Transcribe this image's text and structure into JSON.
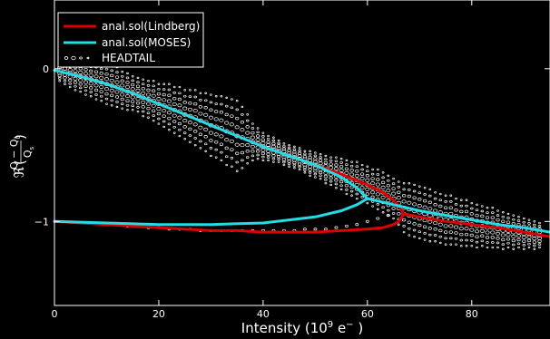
{
  "chart_data": {
    "type": "line",
    "xlabel": "Intensity (10",
    "xlabel_exp": "9",
    "xlabel_tail": " e",
    "xlabel_tail_exp": "−",
    "xlabel_close": " )",
    "ylabel_prefix": "ℜ",
    "ylabel_num": "Q − Q",
    "ylabel_num_sub": "0",
    "ylabel_den": "Q",
    "ylabel_den_sub": "s",
    "xlim": [
      0,
      95
    ],
    "ylim": [
      -1.55,
      0.45
    ],
    "grid": false,
    "legend_position": "top-left",
    "xticks": [
      0,
      20,
      40,
      60,
      80
    ],
    "xtick_labels": [
      "0",
      "20",
      "40",
      "60",
      "80"
    ],
    "yticks": [
      0,
      -1
    ],
    "ytick_labels": [
      "0",
      "−1"
    ],
    "colors": {
      "lindberg": "#dd0000",
      "moses": "#22dde8",
      "headtail": "#ffffff",
      "background": "#000000"
    },
    "legend": [
      {
        "label": "anal.sol(Lindberg)",
        "kind": "line",
        "color": "#dd0000"
      },
      {
        "label": "anal.sol(MOSES)",
        "kind": "line",
        "color": "#22dde8"
      },
      {
        "label": "HEADTAIL",
        "kind": "markers",
        "color": "#ffffff"
      }
    ],
    "series": [
      {
        "name": "anal.sol(Lindberg)",
        "color": "#dd0000",
        "x": [
          0,
          5,
          10,
          15,
          20,
          25,
          30,
          35,
          40,
          45,
          50,
          55,
          60,
          63,
          65,
          66,
          67
        ],
        "y": [
          -0.01,
          -0.05,
          -0.1,
          -0.16,
          -0.23,
          -0.3,
          -0.37,
          -0.44,
          -0.51,
          -0.57,
          -0.63,
          -0.69,
          -0.76,
          -0.81,
          -0.86,
          -0.9,
          -0.95
        ]
      },
      {
        "name": "anal.sol(Lindberg) lower branch",
        "color": "#dd0000",
        "x": [
          0,
          5,
          10,
          15,
          20,
          25,
          30,
          35,
          40,
          45,
          50,
          55,
          60,
          63,
          65,
          66,
          67
        ],
        "y": [
          -1.0,
          -1.01,
          -1.02,
          -1.03,
          -1.04,
          -1.05,
          -1.06,
          -1.06,
          -1.07,
          -1.07,
          -1.07,
          -1.06,
          -1.05,
          -1.04,
          -1.02,
          -1.0,
          -0.95
        ]
      },
      {
        "name": "anal.sol(Lindberg) above threshold",
        "color": "#dd0000",
        "x": [
          67,
          70,
          75,
          80,
          85,
          90,
          95
        ],
        "y": [
          -0.95,
          -0.97,
          -1.0,
          -1.02,
          -1.04,
          -1.07,
          -1.1
        ]
      },
      {
        "name": "anal.sol(MOSES)",
        "color": "#22dde8",
        "x": [
          0,
          5,
          10,
          15,
          20,
          25,
          30,
          35,
          40,
          45,
          50,
          55,
          58,
          60
        ],
        "y": [
          -0.01,
          -0.05,
          -0.1,
          -0.16,
          -0.23,
          -0.3,
          -0.37,
          -0.44,
          -0.51,
          -0.57,
          -0.63,
          -0.71,
          -0.78,
          -0.85
        ]
      },
      {
        "name": "anal.sol(MOSES) lower branch",
        "color": "#22dde8",
        "x": [
          0,
          10,
          20,
          30,
          40,
          45,
          50,
          55,
          58,
          60
        ],
        "y": [
          -1.0,
          -1.01,
          -1.02,
          -1.02,
          -1.01,
          -0.99,
          -0.97,
          -0.93,
          -0.89,
          -0.85
        ]
      },
      {
        "name": "anal.sol(MOSES) above threshold",
        "color": "#22dde8",
        "x": [
          60,
          65,
          70,
          75,
          80,
          85,
          90,
          95
        ],
        "y": [
          -0.85,
          -0.89,
          -0.93,
          -0.96,
          -0.99,
          -1.02,
          -1.04,
          -1.07
        ]
      }
    ],
    "headtail": {
      "x": [
        1,
        2,
        3,
        4,
        5,
        6,
        7,
        8,
        9,
        10,
        11,
        12,
        13,
        14,
        15,
        16,
        17,
        18,
        19,
        20,
        21,
        22,
        23,
        24,
        25,
        26,
        27,
        28,
        29,
        30,
        31,
        32,
        33,
        34,
        35,
        36,
        37,
        38,
        39,
        40,
        41,
        42,
        43,
        44,
        45,
        46,
        47,
        48,
        49,
        50,
        51,
        52,
        53,
        54,
        55,
        56,
        57,
        58,
        59,
        60,
        61,
        62,
        63,
        64,
        65,
        66,
        67,
        68,
        69,
        70,
        71,
        72,
        73,
        74,
        75,
        76,
        77,
        78,
        79,
        80,
        81,
        82,
        83,
        84,
        85,
        86,
        87,
        88,
        89,
        90,
        91,
        92,
        93
      ],
      "y_center": [
        -0.01,
        -0.02,
        -0.03,
        -0.04,
        -0.05,
        -0.06,
        -0.07,
        -0.08,
        -0.09,
        -0.1,
        -0.11,
        -0.12,
        -0.14,
        -0.15,
        -0.16,
        -0.17,
        -0.19,
        -0.2,
        -0.21,
        -0.23,
        -0.24,
        -0.25,
        -0.27,
        -0.28,
        -0.3,
        -0.31,
        -0.32,
        -0.34,
        -0.35,
        -0.37,
        -0.38,
        -0.39,
        -0.41,
        -0.42,
        -0.44,
        -0.45,
        -0.46,
        -0.48,
        -0.49,
        -0.51,
        -0.52,
        -0.53,
        -0.54,
        -0.56,
        -0.57,
        -0.58,
        -0.59,
        -0.61,
        -0.62,
        -0.63,
        -0.64,
        -0.66,
        -0.67,
        -0.68,
        -0.69,
        -0.71,
        -0.72,
        -0.73,
        -0.75,
        -0.76,
        -0.78,
        -0.79,
        -0.81,
        -0.83,
        -0.85,
        -0.88,
        -0.91,
        -0.92,
        -0.93,
        -0.94,
        -0.95,
        -0.96,
        -0.97,
        -0.98,
        -0.99,
        -0.99,
        -1.0,
        -1.01,
        -1.01,
        -1.02,
        -1.03,
        -1.03,
        -1.04,
        -1.04,
        -1.05,
        -1.06,
        -1.06,
        -1.07,
        -1.07,
        -1.08,
        -1.08,
        -1.09,
        -1.09
      ],
      "y_halfwidth": [
        0.07,
        0.08,
        0.09,
        0.1,
        0.1,
        0.11,
        0.11,
        0.12,
        0.12,
        0.13,
        0.13,
        0.13,
        0.12,
        0.12,
        0.11,
        0.11,
        0.12,
        0.12,
        0.13,
        0.13,
        0.14,
        0.15,
        0.15,
        0.16,
        0.16,
        0.17,
        0.18,
        0.18,
        0.19,
        0.2,
        0.2,
        0.21,
        0.22,
        0.22,
        0.23,
        0.2,
        0.16,
        0.12,
        0.1,
        0.09,
        0.08,
        0.08,
        0.07,
        0.07,
        0.07,
        0.07,
        0.07,
        0.07,
        0.08,
        0.08,
        0.08,
        0.09,
        0.09,
        0.1,
        0.1,
        0.11,
        0.11,
        0.12,
        0.12,
        0.12,
        0.12,
        0.13,
        0.13,
        0.13,
        0.13,
        0.14,
        0.16,
        0.17,
        0.17,
        0.17,
        0.17,
        0.17,
        0.16,
        0.16,
        0.16,
        0.16,
        0.15,
        0.15,
        0.15,
        0.14,
        0.14,
        0.13,
        0.13,
        0.13,
        0.12,
        0.12,
        0.11,
        0.11,
        0.1,
        0.1,
        0.09,
        0.09,
        0.08
      ],
      "lower": {
        "x": [
          10,
          12,
          14,
          16,
          18,
          20,
          22,
          24,
          26,
          28,
          30,
          32,
          34,
          36,
          38,
          40,
          42,
          44,
          46,
          48,
          50,
          52,
          54,
          56,
          58,
          60,
          62,
          64
        ],
        "y": [
          -1.02,
          -1.02,
          -1.03,
          -1.03,
          -1.04,
          -1.04,
          -1.05,
          -1.05,
          -1.05,
          -1.06,
          -1.06,
          -1.06,
          -1.06,
          -1.06,
          -1.06,
          -1.06,
          -1.06,
          -1.06,
          -1.06,
          -1.05,
          -1.05,
          -1.05,
          -1.04,
          -1.03,
          -1.02,
          -1.0,
          -0.98,
          -0.96
        ]
      }
    }
  }
}
